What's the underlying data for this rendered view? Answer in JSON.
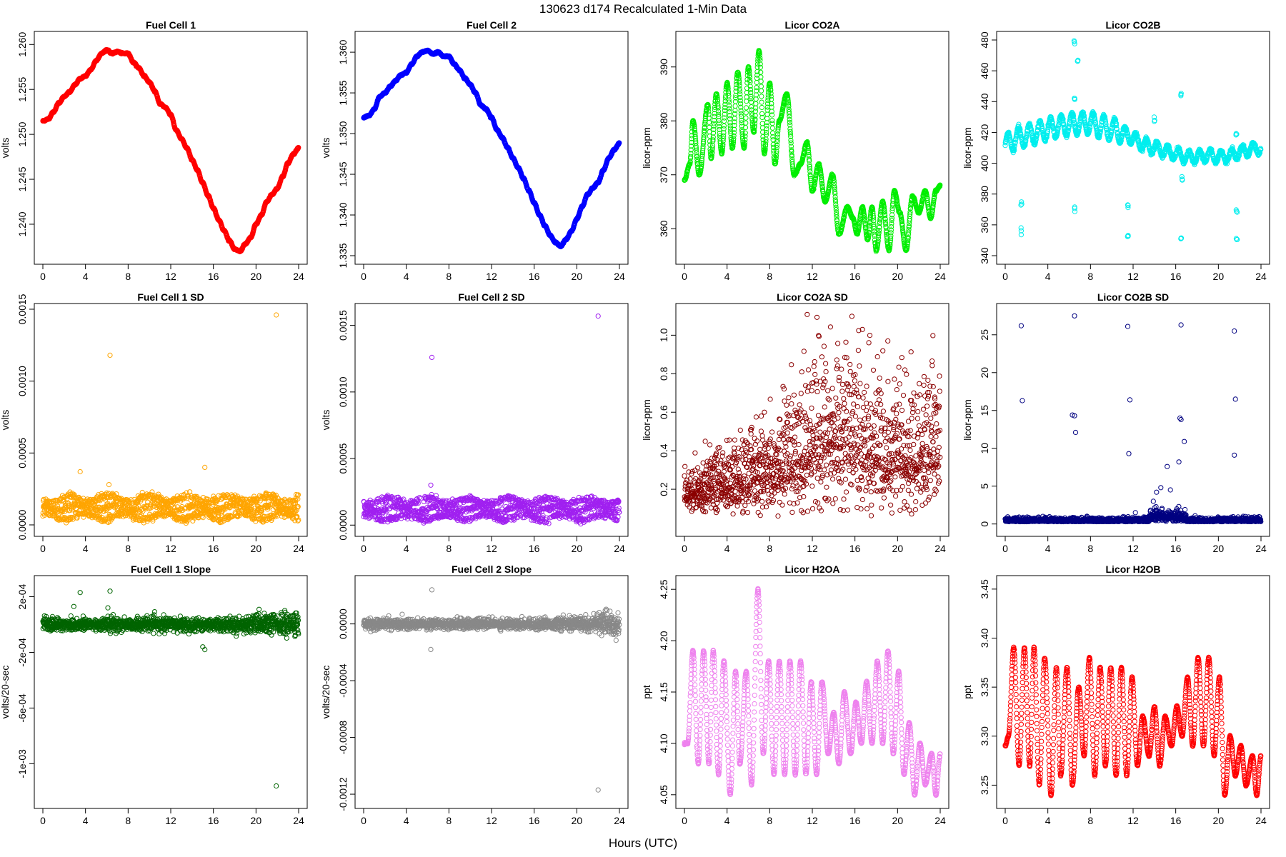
{
  "title": "130623   d174   Recalculated 1-Min Data",
  "xlabel": "Hours (UTC)",
  "chart_data": [
    {
      "id": "fc1",
      "type": "scatter",
      "title": "Fuel Cell 1",
      "ylabel": "volts",
      "color": "#ff0000",
      "xlim": [
        0,
        24
      ],
      "ylim": [
        1.2365,
        1.2605
      ],
      "yticks": [
        1.24,
        1.245,
        1.25,
        1.255,
        1.26
      ],
      "ytick_labels": [
        "1.240",
        "1.245",
        "1.250",
        "1.255",
        "1.260"
      ],
      "xticks": [
        0,
        4,
        8,
        12,
        16,
        20,
        24
      ],
      "x": [
        0,
        0.5,
        1,
        1.5,
        2,
        2.5,
        3,
        3.5,
        4,
        4.5,
        5,
        5.5,
        6,
        6.5,
        7,
        7.5,
        8,
        8.5,
        9,
        9.5,
        10,
        10.5,
        11,
        11.5,
        12,
        12.5,
        13,
        13.5,
        14,
        14.5,
        15,
        15.5,
        16,
        16.5,
        17,
        17.5,
        18,
        18.5,
        19,
        19.5,
        20,
        20.5,
        21,
        21.5,
        22,
        22.5,
        23,
        23.5,
        24
      ],
      "y": [
        1.2515,
        1.2517,
        1.2525,
        1.2535,
        1.2542,
        1.2547,
        1.2555,
        1.2562,
        1.2565,
        1.2572,
        1.2582,
        1.259,
        1.2594,
        1.259,
        1.2592,
        1.259,
        1.259,
        1.258,
        1.2574,
        1.2565,
        1.2558,
        1.2548,
        1.2534,
        1.253,
        1.2522,
        1.2505,
        1.2495,
        1.2485,
        1.2472,
        1.246,
        1.2446,
        1.2432,
        1.2418,
        1.2405,
        1.2393,
        1.2382,
        1.2372,
        1.237,
        1.2378,
        1.2385,
        1.24,
        1.241,
        1.2425,
        1.2433,
        1.244,
        1.2453,
        1.2468,
        1.2478,
        1.2485
      ]
    },
    {
      "id": "fc2",
      "type": "scatter",
      "title": "Fuel Cell 2",
      "ylabel": "volts",
      "color": "#0000ff",
      "xlim": [
        0,
        24
      ],
      "ylim": [
        1.335,
        1.3615
      ],
      "yticks": [
        1.335,
        1.34,
        1.345,
        1.35,
        1.355,
        1.36
      ],
      "ytick_labels": [
        "1.335",
        "1.340",
        "1.345",
        "1.350",
        "1.355",
        "1.360"
      ],
      "xticks": [
        0,
        4,
        8,
        12,
        16,
        20,
        24
      ],
      "x": [
        0,
        0.5,
        1,
        1.5,
        2,
        2.5,
        3,
        3.5,
        4,
        4.5,
        5,
        5.5,
        6,
        6.5,
        7,
        7.5,
        8,
        8.5,
        9,
        9.5,
        10,
        10.5,
        11,
        11.5,
        12,
        12.5,
        13,
        13.5,
        14,
        14.5,
        15,
        15.5,
        16,
        16.5,
        17,
        17.5,
        18,
        18.5,
        19,
        19.5,
        20,
        20.5,
        21,
        21.5,
        22,
        22.5,
        23,
        23.5,
        24
      ],
      "y": [
        1.352,
        1.3522,
        1.353,
        1.3545,
        1.355,
        1.3558,
        1.3565,
        1.3572,
        1.3575,
        1.3585,
        1.3595,
        1.36,
        1.3602,
        1.3598,
        1.36,
        1.3595,
        1.3595,
        1.3585,
        1.3578,
        1.3568,
        1.356,
        1.355,
        1.3535,
        1.353,
        1.352,
        1.3505,
        1.3495,
        1.3483,
        1.347,
        1.3458,
        1.3445,
        1.343,
        1.3415,
        1.34,
        1.3387,
        1.3375,
        1.3366,
        1.3362,
        1.337,
        1.338,
        1.3395,
        1.341,
        1.3425,
        1.3433,
        1.344,
        1.3455,
        1.347,
        1.348,
        1.3488
      ]
    },
    {
      "id": "co2a",
      "type": "scatter",
      "title": "Licor CO2A",
      "ylabel": "licor-ppm",
      "color": "#00ee00",
      "xlim": [
        0,
        24
      ],
      "ylim": [
        355,
        395
      ],
      "yticks": [
        360,
        370,
        380,
        390
      ],
      "ytick_labels": [
        "360",
        "370",
        "380",
        "390"
      ],
      "xticks": [
        0,
        4,
        8,
        12,
        16,
        20,
        24
      ],
      "x": [
        0,
        0.5,
        0.8,
        1.4,
        2.2,
        2.5,
        3.0,
        3.5,
        4.0,
        4.5,
        5.0,
        5.6,
        6.0,
        6.5,
        7.0,
        7.5,
        8.0,
        8.5,
        8.9,
        9.6,
        10.3,
        10.9,
        11.5,
        12.0,
        12.6,
        13.2,
        13.9,
        14.5,
        15.3,
        15.8,
        16.2,
        16.7,
        17.2,
        17.6,
        18.0,
        18.6,
        19.2,
        19.7,
        20.2,
        20.8,
        21.4,
        22.0,
        22.6,
        23.1,
        23.6,
        24
      ],
      "y": [
        369,
        372,
        380,
        370,
        383,
        373,
        385,
        374,
        387,
        375,
        389,
        375,
        390,
        378,
        393,
        374,
        387,
        372,
        380,
        385,
        370,
        372,
        376,
        367,
        372,
        365,
        370,
        359,
        364,
        362,
        359,
        364,
        358,
        364,
        356,
        365,
        356,
        367,
        363,
        356,
        366,
        363,
        367,
        362,
        367,
        368
      ],
      "sigma": 0.5
    },
    {
      "id": "co2b",
      "type": "scatter",
      "title": "Licor CO2B",
      "ylabel": "licor-ppm",
      "color": "#00eeee",
      "xlim": [
        0,
        24
      ],
      "ylim": [
        340,
        480
      ],
      "yticks": [
        340,
        360,
        380,
        400,
        420,
        440,
        460,
        480
      ],
      "ytick_labels": [
        "340",
        "360",
        "380",
        "400",
        "420",
        "440",
        "460",
        "480"
      ],
      "xticks": [
        0,
        4,
        8,
        12,
        16,
        20,
        24
      ],
      "x": [
        0,
        1,
        2,
        3,
        4,
        5,
        6,
        7,
        8,
        9,
        10,
        11,
        12,
        13,
        14,
        15,
        16,
        17,
        18,
        19,
        20,
        21,
        22,
        23,
        24
      ],
      "y": [
        412,
        416,
        418,
        420,
        422,
        424,
        425,
        426,
        426,
        424,
        422,
        420,
        416,
        412,
        410,
        408,
        406,
        404,
        404,
        405,
        404,
        405,
        407,
        409,
        410
      ],
      "osc_amp": 7,
      "osc_period": 1.0,
      "outliers_x": [
        1.5,
        1.5,
        6.5,
        6.5,
        6.5,
        6.8,
        11.5,
        11.5,
        14.0,
        16.5,
        16.5,
        16.6,
        21.7,
        21.7,
        21.7
      ],
      "outliers_y": [
        374,
        355,
        371,
        441,
        477,
        466,
        373,
        352,
        428,
        350,
        444,
        390,
        419,
        369,
        350
      ]
    },
    {
      "id": "fc1sd",
      "type": "scatter",
      "title": "Fuel Cell 1 SD",
      "ylabel": "volts",
      "color": "#ffa500",
      "xlim": [
        0,
        24
      ],
      "ylim": [
        -2e-05,
        0.00148
      ],
      "yticks": [
        0.0,
        0.0005,
        0.001,
        0.0015
      ],
      "ytick_labels": [
        "0.0000",
        "0.0005",
        "0.0010",
        "0.0015"
      ],
      "xticks": [
        0,
        4,
        8,
        12,
        16,
        20,
        24
      ],
      "bands": [
        6e-05,
        0.00012,
        0.00018
      ],
      "band_spread": 2.5e-05,
      "outliers_x": [
        3.5,
        6.3,
        6.2,
        15.2,
        21.9
      ],
      "outliers_y": [
        0.00037,
        0.00118,
        0.00028,
        0.0004,
        0.00146
      ]
    },
    {
      "id": "fc2sd",
      "type": "scatter",
      "title": "Fuel Cell 2 SD",
      "ylabel": "volts",
      "color": "#a020f0",
      "xlim": [
        0,
        24
      ],
      "ylim": [
        -2e-05,
        0.0016
      ],
      "yticks": [
        0.0,
        0.0005,
        0.001,
        0.0015
      ],
      "ytick_labels": [
        "0.0000",
        "0.0005",
        "0.0010",
        "0.0015"
      ],
      "xticks": [
        0,
        4,
        8,
        12,
        16,
        20,
        24
      ],
      "bands": [
        6e-05,
        0.00012,
        0.00018
      ],
      "band_spread": 2.5e-05,
      "outliers_x": [
        6.4,
        6.3,
        22.0
      ],
      "outliers_y": [
        0.00126,
        0.0003,
        0.00157
      ]
    },
    {
      "id": "co2asd",
      "type": "scatter",
      "title": "Licor CO2A SD",
      "ylabel": "licor-ppm",
      "color": "#8b0000",
      "xlim": [
        0,
        24
      ],
      "ylim": [
        0.0,
        1.12
      ],
      "yticks": [
        0.2,
        0.4,
        0.6,
        0.8,
        1.0
      ],
      "ytick_labels": [
        "0.2",
        "0.4",
        "0.6",
        "0.8",
        "1.0"
      ],
      "xticks": [
        0,
        4,
        8,
        12,
        16,
        20,
        24
      ],
      "trend_x": [
        0,
        4,
        8,
        10,
        12,
        14,
        16,
        18,
        20,
        22,
        24
      ],
      "trend_mean": [
        0.18,
        0.22,
        0.28,
        0.35,
        0.42,
        0.45,
        0.44,
        0.4,
        0.36,
        0.38,
        0.42
      ],
      "trend_spread": [
        0.06,
        0.09,
        0.12,
        0.17,
        0.2,
        0.22,
        0.21,
        0.19,
        0.18,
        0.18,
        0.19
      ]
    },
    {
      "id": "co2bsd",
      "type": "scatter",
      "title": "Licor CO2B SD",
      "ylabel": "licor-ppm",
      "color": "#000080",
      "xlim": [
        0,
        24
      ],
      "ylim": [
        -0.5,
        28
      ],
      "yticks": [
        0,
        5,
        10,
        15,
        20,
        25
      ],
      "ytick_labels": [
        "0",
        "5",
        "10",
        "15",
        "20",
        "25"
      ],
      "xticks": [
        0,
        4,
        8,
        12,
        16,
        20,
        24
      ],
      "base": 0.3,
      "base_spread": 0.25,
      "outliers_x": [
        1.5,
        1.6,
        6.5,
        6.3,
        6.5,
        6.6,
        11.5,
        11.7,
        11.6,
        16.5,
        16.4,
        16.5,
        16.8,
        16.3,
        21.5,
        21.6,
        21.5,
        14.2,
        14.6,
        15.2,
        15.5,
        16.1,
        13.9
      ],
      "outliers_y": [
        26.2,
        16.3,
        27.5,
        14.4,
        14.3,
        12.1,
        26.1,
        16.4,
        9.3,
        26.3,
        14.0,
        13.8,
        10.9,
        8.2,
        25.5,
        16.5,
        9.1,
        4.2,
        4.8,
        7.6,
        4.5,
        2.0,
        3.0
      ]
    },
    {
      "id": "fc1slope",
      "type": "scatter",
      "title": "Fuel Cell 1 Slope",
      "ylabel": "volts/20-sec",
      "color": "#006400",
      "xlim": [
        0,
        24
      ],
      "ylim": [
        -0.00126,
        0.00029
      ],
      "yticks": [
        -0.001,
        -0.0006,
        -0.0002,
        0.0002
      ],
      "ytick_labels": [
        "-1e-03",
        "-6e-04",
        "-2e-04",
        "2e-04"
      ],
      "xticks": [
        0,
        4,
        8,
        12,
        16,
        20,
        24
      ],
      "base": 0.0,
      "base_spread": 4e-05,
      "spread_end": 8e-05,
      "outliers_x": [
        3.5,
        6.3,
        6.1,
        2.9,
        15.2,
        15.0,
        21.9
      ],
      "outliers_y": [
        0.00023,
        0.00024,
        0.00012,
        0.00013,
        -0.00018,
        -0.00016,
        -0.00116
      ]
    },
    {
      "id": "fc2slope",
      "type": "scatter",
      "title": "Fuel Cell 2 Slope",
      "ylabel": "volts/20-sec",
      "color": "#888888",
      "xlim": [
        0,
        24
      ],
      "ylim": [
        -0.00124,
        0.00028
      ],
      "yticks": [
        -0.0012,
        -0.0008,
        -0.0004,
        0.0
      ],
      "ytick_labels": [
        "-0.0012",
        "-0.0008",
        "-0.0004",
        "0.0000"
      ],
      "xticks": [
        0,
        4,
        8,
        12,
        16,
        20,
        24
      ],
      "base": 0.0,
      "base_spread": 3e-05,
      "spread_end": 7e-05,
      "outliers_x": [
        6.4,
        6.3,
        22.0
      ],
      "outliers_y": [
        0.00024,
        -0.00018,
        -0.00117
      ]
    },
    {
      "id": "h2oa",
      "type": "scatter",
      "title": "Licor H2OA",
      "ylabel": "ppt",
      "color": "#ee82ee",
      "xlim": [
        0,
        24
      ],
      "ylim": [
        4.045,
        4.255
      ],
      "yticks": [
        4.05,
        4.1,
        4.15,
        4.2,
        4.25
      ],
      "ytick_labels": [
        "4.05",
        "4.10",
        "4.15",
        "4.20",
        "4.25"
      ],
      "xticks": [
        0,
        4,
        8,
        12,
        16,
        20,
        24
      ],
      "x": [
        0,
        0.3,
        0.8,
        1.3,
        1.8,
        2.3,
        2.7,
        3.2,
        3.7,
        4.3,
        4.8,
        5.2,
        5.8,
        6.3,
        6.9,
        7.4,
        7.9,
        8.4,
        8.9,
        9.4,
        9.9,
        10.4,
        10.9,
        11.4,
        11.9,
        12.4,
        12.9,
        13.5,
        14.0,
        14.5,
        15.0,
        15.6,
        16.1,
        16.6,
        17.1,
        17.6,
        18.1,
        18.6,
        19.1,
        19.6,
        20.1,
        20.6,
        21.1,
        21.6,
        22.1,
        22.6,
        23.2,
        23.6,
        24
      ],
      "y": [
        4.1,
        4.1,
        4.19,
        4.08,
        4.19,
        4.08,
        4.19,
        4.07,
        4.18,
        4.05,
        4.17,
        4.08,
        4.17,
        4.06,
        4.25,
        4.09,
        4.18,
        4.07,
        4.18,
        4.07,
        4.18,
        4.07,
        4.18,
        4.07,
        4.16,
        4.07,
        4.16,
        4.09,
        4.13,
        4.08,
        4.15,
        4.09,
        4.14,
        4.1,
        4.16,
        4.1,
        4.18,
        4.1,
        4.19,
        4.09,
        4.17,
        4.07,
        4.12,
        4.05,
        4.1,
        4.06,
        4.09,
        4.05,
        4.09
      ]
    },
    {
      "id": "h2ob",
      "type": "scatter",
      "title": "Licor H2OB",
      "ylabel": "ppt",
      "color": "#ff0000",
      "xlim": [
        0,
        24
      ],
      "ylim": [
        3.235,
        3.455
      ],
      "yticks": [
        3.25,
        3.3,
        3.35,
        3.4,
        3.45
      ],
      "ytick_labels": [
        "3.25",
        "3.30",
        "3.35",
        "3.40",
        "3.45"
      ],
      "xticks": [
        0,
        4,
        8,
        12,
        16,
        20,
        24
      ],
      "x": [
        0,
        0.3,
        0.8,
        1.3,
        1.8,
        2.3,
        2.7,
        3.2,
        3.7,
        4.3,
        4.8,
        5.2,
        5.8,
        6.3,
        6.9,
        7.4,
        7.9,
        8.4,
        8.9,
        9.4,
        9.9,
        10.4,
        10.9,
        11.4,
        11.9,
        12.4,
        12.9,
        13.5,
        14.0,
        14.5,
        15.0,
        15.6,
        16.1,
        16.6,
        17.1,
        17.6,
        18.1,
        18.6,
        19.1,
        19.6,
        20.1,
        20.6,
        21.1,
        21.6,
        22.1,
        22.6,
        23.2,
        23.6,
        24
      ],
      "y": [
        3.29,
        3.3,
        3.39,
        3.27,
        3.39,
        3.27,
        3.39,
        3.25,
        3.38,
        3.24,
        3.37,
        3.26,
        3.37,
        3.25,
        3.35,
        3.28,
        3.38,
        3.26,
        3.37,
        3.27,
        3.37,
        3.26,
        3.37,
        3.26,
        3.36,
        3.27,
        3.32,
        3.28,
        3.33,
        3.27,
        3.32,
        3.29,
        3.33,
        3.3,
        3.36,
        3.29,
        3.38,
        3.29,
        3.38,
        3.28,
        3.36,
        3.24,
        3.3,
        3.26,
        3.29,
        3.25,
        3.28,
        3.24,
        3.28
      ]
    }
  ]
}
